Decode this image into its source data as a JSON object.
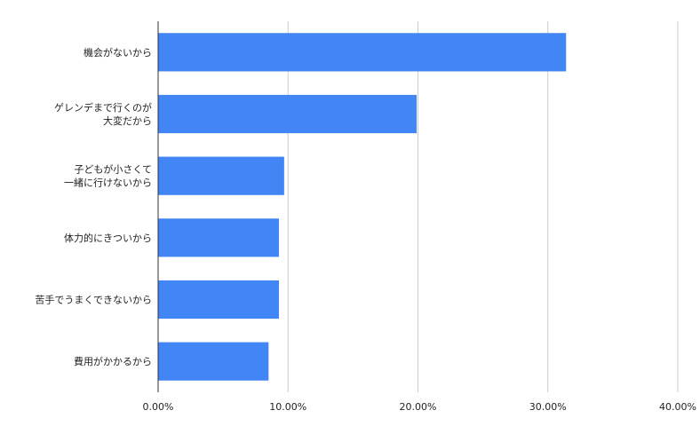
{
  "chart_data": {
    "type": "bar",
    "orientation": "horizontal",
    "categories": [
      [
        "機会がないから"
      ],
      [
        "ゲレンデまで行くのが",
        "大変だから"
      ],
      [
        "子どもが小さくて",
        "一緒に行けないから"
      ],
      [
        "体力的にきついから"
      ],
      [
        "苦手でうまくできないから"
      ],
      [
        "費用がかかるから"
      ]
    ],
    "values": [
      31.4,
      19.9,
      9.7,
      9.3,
      9.3,
      8.5
    ],
    "xlim": [
      0,
      40
    ],
    "xticks": [
      0,
      10,
      20,
      30,
      40
    ],
    "xtick_labels": [
      "0.00%",
      "10.00%",
      "20.00%",
      "30.00%",
      "40.00%"
    ],
    "grid": "vertical",
    "bar_color": "#4285f4",
    "title": "",
    "xlabel": "",
    "ylabel": ""
  }
}
